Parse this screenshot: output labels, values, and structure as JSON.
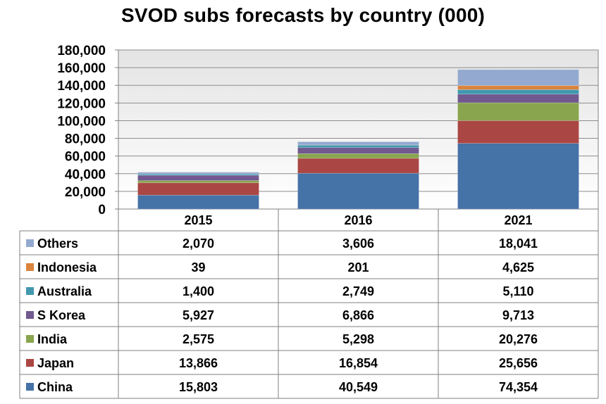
{
  "chart_data": {
    "type": "bar",
    "stacked": true,
    "title": "SVOD subs forecasts by country (000)",
    "categories": [
      "2015",
      "2016",
      "2021"
    ],
    "ylim": [
      0,
      180000
    ],
    "yticks": [
      "0",
      "20,000",
      "40,000",
      "60,000",
      "80,000",
      "100,000",
      "120,000",
      "140,000",
      "160,000",
      "180,000"
    ],
    "grid": true,
    "legend": "data-table-left",
    "series": [
      {
        "name": "China",
        "color": "#4572A7",
        "values": [
          15803,
          40549,
          74354
        ],
        "labels": [
          "15,803",
          "40,549",
          "74,354"
        ]
      },
      {
        "name": "Japan",
        "color": "#AA4643",
        "values": [
          13866,
          16854,
          25656
        ],
        "labels": [
          "13,866",
          "16,854",
          "25,656"
        ]
      },
      {
        "name": "India",
        "color": "#89A54E",
        "values": [
          2575,
          5298,
          20276
        ],
        "labels": [
          "2,575",
          "5,298",
          "20,276"
        ]
      },
      {
        "name": "S Korea",
        "color": "#71588F",
        "values": [
          5927,
          6866,
          9713
        ],
        "labels": [
          "5,927",
          "6,866",
          "9,713"
        ]
      },
      {
        "name": "Australia",
        "color": "#4198AF",
        "values": [
          1400,
          2749,
          5110
        ],
        "labels": [
          "1,400",
          "2,749",
          "5,110"
        ]
      },
      {
        "name": "Indonesia",
        "color": "#DB843D",
        "values": [
          39,
          201,
          4625
        ],
        "labels": [
          "39",
          "201",
          "4,625"
        ]
      },
      {
        "name": "Others",
        "color": "#93A9CF",
        "values": [
          2070,
          3606,
          18041
        ],
        "labels": [
          "2,070",
          "3,606",
          "18,041"
        ]
      }
    ]
  }
}
